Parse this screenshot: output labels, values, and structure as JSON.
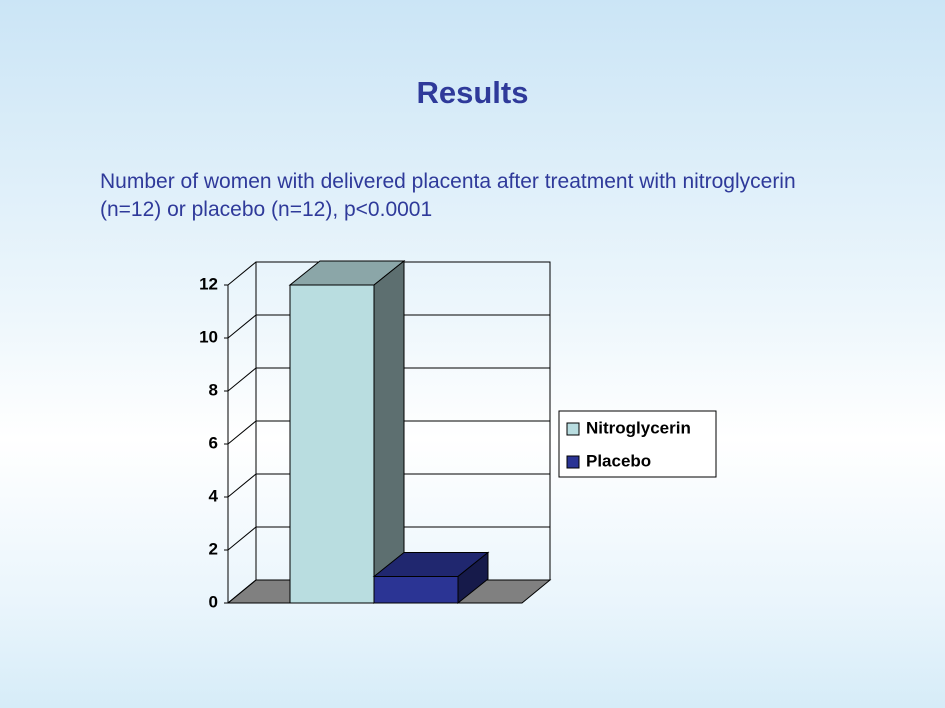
{
  "chart_data": {
    "type": "bar3d",
    "title": "Results",
    "subtitle": "Number of women with delivered placenta after treatment with nitroglycerin (n=12) or placebo (n=12), p<0.0001",
    "series": [
      {
        "name": "Nitroglycerin",
        "color": "#b9dde0",
        "values": [
          12
        ]
      },
      {
        "name": "Placebo",
        "color": "#2b3494",
        "values": [
          1
        ]
      }
    ],
    "ylim": [
      0,
      12
    ],
    "yticks": [
      0,
      2,
      4,
      6,
      8,
      10,
      12
    ],
    "grid": true,
    "legend": "right"
  }
}
